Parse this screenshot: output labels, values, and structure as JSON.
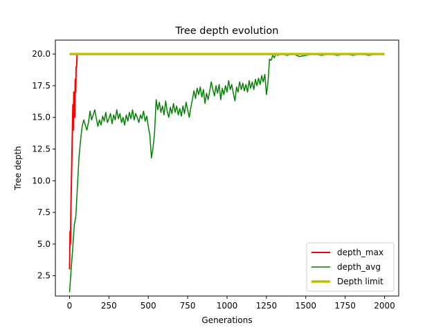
{
  "chart_data": {
    "type": "line",
    "title": "Tree depth evolution",
    "xlabel": "Generations",
    "ylabel": "Tree depth",
    "xlim": [
      -90,
      2090
    ],
    "ylim": [
      0.9,
      21.1
    ],
    "x_ticks": [
      0,
      250,
      500,
      750,
      1000,
      1250,
      1500,
      1750,
      2000
    ],
    "y_ticks": [
      2.5,
      5.0,
      7.5,
      10.0,
      12.5,
      15.0,
      17.5,
      20.0
    ],
    "x_tick_labels": [
      "0",
      "250",
      "500",
      "750",
      "1000",
      "1250",
      "1500",
      "1750",
      "2000"
    ],
    "y_tick_labels": [
      "2.5",
      "5.0",
      "7.5",
      "10.0",
      "12.5",
      "15.0",
      "17.5",
      "20.0"
    ],
    "grid": false,
    "legend_position": "lower-right",
    "series": [
      {
        "name": "depth_max",
        "color": "#ff0000",
        "line_width": 2,
        "points": [
          [
            0,
            3
          ],
          [
            3,
            6
          ],
          [
            6,
            5
          ],
          [
            9,
            8
          ],
          [
            12,
            10
          ],
          [
            15,
            12
          ],
          [
            18,
            14
          ],
          [
            21,
            16
          ],
          [
            24,
            14
          ],
          [
            27,
            17
          ],
          [
            30,
            16
          ],
          [
            33,
            15
          ],
          [
            36,
            18
          ],
          [
            39,
            17
          ],
          [
            42,
            19
          ],
          [
            45,
            19
          ],
          [
            48,
            20
          ],
          [
            52,
            20
          ],
          [
            2000,
            20
          ]
        ]
      },
      {
        "name": "depth_avg",
        "color": "#008000",
        "line_width": 1.5,
        "points": [
          [
            0,
            1.2
          ],
          [
            10,
            3.0
          ],
          [
            20,
            4.6
          ],
          [
            30,
            6.5
          ],
          [
            40,
            7.2
          ],
          [
            50,
            9.6
          ],
          [
            60,
            11.8
          ],
          [
            70,
            13.2
          ],
          [
            80,
            14.3
          ],
          [
            90,
            14.8
          ],
          [
            100,
            14.4
          ],
          [
            110,
            14.0
          ],
          [
            120,
            14.6
          ],
          [
            130,
            15.5
          ],
          [
            140,
            14.8
          ],
          [
            150,
            15.2
          ],
          [
            160,
            15.6
          ],
          [
            170,
            14.9
          ],
          [
            180,
            14.3
          ],
          [
            190,
            14.8
          ],
          [
            200,
            14.4
          ],
          [
            210,
            15.1
          ],
          [
            220,
            14.7
          ],
          [
            230,
            15.4
          ],
          [
            240,
            14.6
          ],
          [
            250,
            14.9
          ],
          [
            260,
            15.3
          ],
          [
            270,
            14.5
          ],
          [
            280,
            15.2
          ],
          [
            290,
            14.8
          ],
          [
            300,
            15.6
          ],
          [
            310,
            14.9
          ],
          [
            320,
            15.3
          ],
          [
            330,
            14.6
          ],
          [
            340,
            15.0
          ],
          [
            350,
            14.4
          ],
          [
            360,
            15.2
          ],
          [
            370,
            14.7
          ],
          [
            380,
            15.4
          ],
          [
            390,
            14.9
          ],
          [
            400,
            15.6
          ],
          [
            410,
            14.8
          ],
          [
            420,
            15.3
          ],
          [
            430,
            15.0
          ],
          [
            440,
            14.6
          ],
          [
            450,
            15.2
          ],
          [
            460,
            14.9
          ],
          [
            470,
            15.5
          ],
          [
            480,
            14.7
          ],
          [
            490,
            15.1
          ],
          [
            500,
            14.3
          ],
          [
            510,
            13.6
          ],
          [
            520,
            11.8
          ],
          [
            530,
            12.6
          ],
          [
            540,
            13.8
          ],
          [
            550,
            16.4
          ],
          [
            560,
            15.6
          ],
          [
            570,
            16.2
          ],
          [
            580,
            15.4
          ],
          [
            590,
            15.9
          ],
          [
            600,
            15.2
          ],
          [
            610,
            16.3
          ],
          [
            620,
            15.5
          ],
          [
            630,
            15.0
          ],
          [
            640,
            15.8
          ],
          [
            650,
            15.3
          ],
          [
            660,
            16.1
          ],
          [
            670,
            15.4
          ],
          [
            680,
            15.9
          ],
          [
            690,
            15.2
          ],
          [
            700,
            15.7
          ],
          [
            710,
            15.1
          ],
          [
            720,
            15.9
          ],
          [
            730,
            15.3
          ],
          [
            740,
            16.2
          ],
          [
            750,
            15.6
          ],
          [
            760,
            15.0
          ],
          [
            770,
            15.8
          ],
          [
            780,
            16.4
          ],
          [
            790,
            17.1
          ],
          [
            800,
            16.5
          ],
          [
            810,
            17.3
          ],
          [
            820,
            16.8
          ],
          [
            830,
            17.4
          ],
          [
            840,
            16.6
          ],
          [
            850,
            17.2
          ],
          [
            860,
            16.1
          ],
          [
            870,
            16.9
          ],
          [
            880,
            16.4
          ],
          [
            890,
            17.1
          ],
          [
            900,
            17.8
          ],
          [
            910,
            17.2
          ],
          [
            920,
            16.7
          ],
          [
            930,
            17.5
          ],
          [
            940,
            16.9
          ],
          [
            950,
            17.6
          ],
          [
            960,
            16.4
          ],
          [
            970,
            17.3
          ],
          [
            980,
            16.8
          ],
          [
            990,
            17.5
          ],
          [
            1000,
            17.0
          ],
          [
            1010,
            17.9
          ],
          [
            1020,
            17.2
          ],
          [
            1030,
            17.6
          ],
          [
            1040,
            16.9
          ],
          [
            1050,
            16.3
          ],
          [
            1060,
            17.4
          ],
          [
            1070,
            17.0
          ],
          [
            1080,
            17.8
          ],
          [
            1090,
            17.2
          ],
          [
            1100,
            17.7
          ],
          [
            1110,
            17.1
          ],
          [
            1120,
            17.6
          ],
          [
            1130,
            17.0
          ],
          [
            1140,
            17.9
          ],
          [
            1150,
            17.3
          ],
          [
            1160,
            17.8
          ],
          [
            1170,
            17.2
          ],
          [
            1180,
            18.0
          ],
          [
            1190,
            17.5
          ],
          [
            1200,
            18.1
          ],
          [
            1210,
            17.6
          ],
          [
            1220,
            18.3
          ],
          [
            1230,
            17.8
          ],
          [
            1240,
            18.4
          ],
          [
            1250,
            16.8
          ],
          [
            1260,
            17.8
          ],
          [
            1270,
            19.6
          ],
          [
            1280,
            19.5
          ],
          [
            1290,
            19.9
          ],
          [
            1300,
            19.7
          ],
          [
            1310,
            20.0
          ],
          [
            1320,
            19.9
          ],
          [
            1350,
            20.0
          ],
          [
            1380,
            19.9
          ],
          [
            1420,
            20.0
          ],
          [
            1460,
            19.8
          ],
          [
            1500,
            19.9
          ],
          [
            1550,
            20.0
          ],
          [
            1600,
            19.9
          ],
          [
            1650,
            20.0
          ],
          [
            1700,
            19.9
          ],
          [
            1750,
            20.0
          ],
          [
            1800,
            19.9
          ],
          [
            1850,
            20.0
          ],
          [
            1900,
            19.9
          ],
          [
            1950,
            20.0
          ],
          [
            2000,
            19.95
          ]
        ]
      },
      {
        "name": "Depth limit",
        "color": "#bfbf00",
        "line_width": 3.5,
        "points": [
          [
            0,
            20
          ],
          [
            2000,
            20
          ]
        ]
      }
    ]
  }
}
